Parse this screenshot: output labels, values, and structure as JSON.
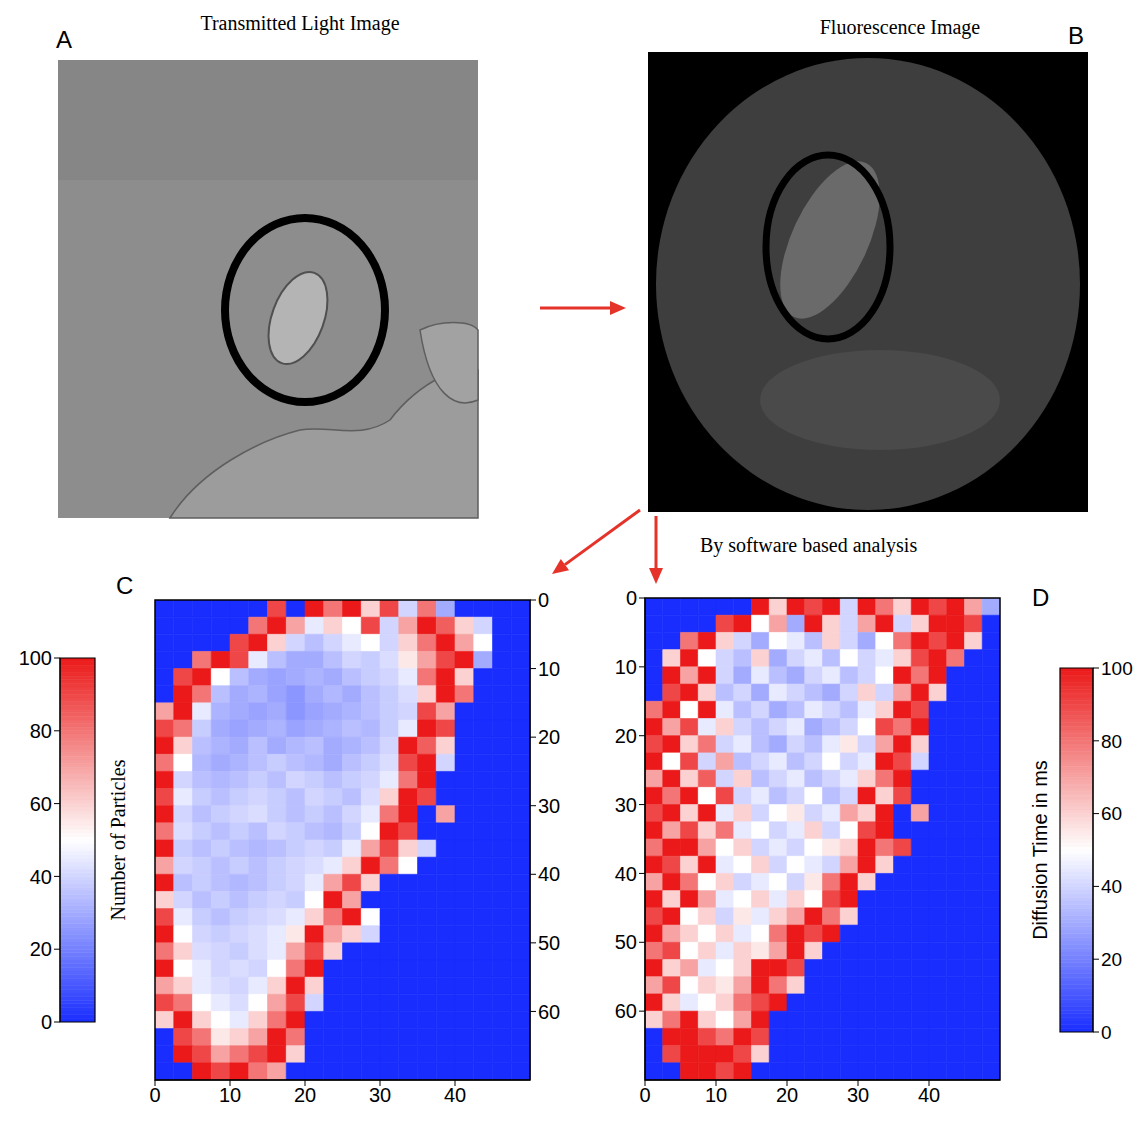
{
  "figure": {
    "panels": [
      {
        "label": "A",
        "title": "Transmitted Light Image"
      },
      {
        "label": "B",
        "title": "Fluorescence Image"
      }
    ],
    "annotation": "By software based analysis"
  },
  "chart_data": [
    {
      "type": "heatmap",
      "label": "C",
      "xlim": [
        0,
        50
      ],
      "ylim": [
        0,
        70
      ],
      "xticks": [
        0,
        10,
        20,
        30,
        40
      ],
      "yticks": [
        0,
        10,
        20,
        30,
        40,
        50,
        60
      ],
      "x_bins": [
        0,
        2.5,
        5,
        7.5,
        10,
        12.5,
        15,
        17.5,
        20,
        22.5,
        25,
        27.5,
        30,
        32.5,
        35,
        37.5,
        40,
        42.5,
        45,
        47.5,
        50
      ],
      "y_bins": [
        0,
        2.5,
        5,
        7.5,
        10,
        12.5,
        15,
        17.5,
        20,
        22.5,
        25,
        27.5,
        30,
        32.5,
        35,
        37.5,
        40,
        42.5,
        45,
        47.5,
        50,
        52.5,
        55,
        57.5,
        60,
        62.5,
        65,
        67.5,
        70
      ],
      "cells": [
        [
          0,
          0,
          0,
          0,
          0,
          0,
          90,
          0,
          100,
          80,
          100,
          60,
          90,
          40,
          80,
          30,
          0,
          0,
          0,
          0
        ],
        [
          0,
          0,
          0,
          0,
          0,
          80,
          100,
          70,
          45,
          60,
          50,
          90,
          40,
          70,
          100,
          85,
          60,
          40,
          0,
          0
        ],
        [
          0,
          0,
          0,
          0,
          90,
          100,
          60,
          40,
          35,
          40,
          45,
          50,
          40,
          60,
          80,
          100,
          70,
          50,
          0,
          0
        ],
        [
          0,
          0,
          80,
          100,
          90,
          45,
          35,
          30,
          30,
          35,
          40,
          38,
          42,
          55,
          70,
          90,
          100,
          30,
          0,
          0
        ],
        [
          0,
          90,
          100,
          50,
          35,
          30,
          28,
          30,
          32,
          30,
          35,
          38,
          40,
          45,
          80,
          100,
          60,
          0,
          0,
          0
        ],
        [
          0,
          100,
          80,
          35,
          30,
          32,
          28,
          25,
          30,
          33,
          30,
          35,
          38,
          42,
          60,
          100,
          80,
          0,
          0,
          0
        ],
        [
          70,
          100,
          45,
          32,
          30,
          28,
          30,
          25,
          28,
          30,
          32,
          35,
          38,
          40,
          90,
          70,
          0,
          0,
          0,
          0
        ],
        [
          90,
          80,
          38,
          30,
          28,
          30,
          32,
          28,
          30,
          32,
          35,
          33,
          38,
          45,
          100,
          90,
          0,
          0,
          0,
          0
        ],
        [
          100,
          60,
          35,
          32,
          30,
          35,
          30,
          33,
          35,
          30,
          32,
          35,
          40,
          100,
          85,
          60,
          0,
          0,
          0,
          0
        ],
        [
          80,
          50,
          33,
          30,
          32,
          35,
          38,
          35,
          33,
          30,
          35,
          38,
          42,
          90,
          100,
          40,
          0,
          0,
          0,
          0
        ],
        [
          100,
          40,
          35,
          33,
          35,
          38,
          35,
          40,
          38,
          35,
          38,
          40,
          45,
          80,
          100,
          0,
          0,
          0,
          0,
          0
        ],
        [
          90,
          45,
          38,
          35,
          38,
          40,
          38,
          35,
          40,
          38,
          35,
          42,
          60,
          100,
          90,
          0,
          0,
          0,
          0,
          0
        ],
        [
          100,
          40,
          35,
          38,
          40,
          42,
          38,
          35,
          38,
          35,
          40,
          45,
          80,
          100,
          0,
          70,
          0,
          0,
          0,
          0
        ],
        [
          80,
          42,
          38,
          35,
          38,
          35,
          40,
          38,
          35,
          33,
          38,
          50,
          100,
          90,
          0,
          0,
          0,
          0,
          0,
          0
        ],
        [
          100,
          38,
          35,
          38,
          35,
          33,
          35,
          38,
          40,
          38,
          45,
          70,
          90,
          60,
          40,
          0,
          0,
          0,
          0,
          0
        ],
        [
          70,
          40,
          38,
          35,
          38,
          35,
          38,
          40,
          42,
          45,
          60,
          100,
          80,
          50,
          0,
          0,
          0,
          0,
          0,
          0
        ],
        [
          100,
          35,
          38,
          35,
          33,
          35,
          38,
          40,
          45,
          70,
          90,
          60,
          0,
          0,
          0,
          0,
          0,
          0,
          0,
          0
        ],
        [
          60,
          40,
          35,
          38,
          35,
          38,
          40,
          38,
          50,
          100,
          70,
          0,
          0,
          0,
          0,
          0,
          0,
          0,
          0,
          0
        ],
        [
          90,
          45,
          38,
          35,
          38,
          40,
          42,
          45,
          60,
          80,
          100,
          50,
          0,
          0,
          0,
          0,
          0,
          0,
          0,
          0
        ],
        [
          100,
          50,
          40,
          38,
          40,
          42,
          45,
          55,
          100,
          70,
          60,
          40,
          0,
          0,
          0,
          0,
          0,
          0,
          0,
          0
        ],
        [
          80,
          60,
          42,
          40,
          38,
          42,
          45,
          70,
          90,
          60,
          0,
          0,
          0,
          0,
          0,
          0,
          0,
          0,
          0,
          0
        ],
        [
          100,
          50,
          45,
          40,
          42,
          40,
          50,
          80,
          100,
          0,
          0,
          0,
          0,
          0,
          0,
          0,
          0,
          0,
          0,
          0
        ],
        [
          70,
          60,
          45,
          42,
          40,
          45,
          60,
          100,
          60,
          0,
          0,
          0,
          0,
          0,
          0,
          0,
          0,
          0,
          0,
          0
        ],
        [
          90,
          80,
          50,
          45,
          42,
          50,
          70,
          90,
          40,
          0,
          0,
          0,
          0,
          0,
          0,
          0,
          0,
          0,
          0,
          0
        ],
        [
          60,
          100,
          60,
          50,
          45,
          60,
          80,
          100,
          0,
          0,
          0,
          0,
          0,
          0,
          0,
          0,
          0,
          0,
          0,
          0
        ],
        [
          0,
          90,
          80,
          55,
          60,
          70,
          100,
          80,
          0,
          0,
          0,
          0,
          0,
          0,
          0,
          0,
          0,
          0,
          0,
          0
        ],
        [
          0,
          100,
          90,
          70,
          80,
          90,
          100,
          60,
          0,
          0,
          0,
          0,
          0,
          0,
          0,
          0,
          0,
          0,
          0,
          0
        ],
        [
          0,
          0,
          100,
          90,
          100,
          80,
          70,
          0,
          0,
          0,
          0,
          0,
          0,
          0,
          0,
          0,
          0,
          0,
          0,
          0
        ]
      ],
      "colorbar": {
        "label": "Number of Particles",
        "range": [
          0,
          100
        ],
        "ticks": [
          0,
          20,
          40,
          60,
          80,
          100
        ]
      }
    },
    {
      "type": "heatmap",
      "label": "D",
      "xlim": [
        0,
        50
      ],
      "ylim": [
        0,
        70
      ],
      "xticks": [
        0,
        10,
        20,
        30,
        40
      ],
      "yticks": [
        0,
        10,
        20,
        30,
        40,
        50,
        60
      ],
      "x_bins": [
        0,
        2.5,
        5,
        7.5,
        10,
        12.5,
        15,
        17.5,
        20,
        22.5,
        25,
        27.5,
        30,
        32.5,
        35,
        37.5,
        40,
        42.5,
        45,
        47.5,
        50
      ],
      "y_bins": [
        0,
        2.5,
        5,
        7.5,
        10,
        12.5,
        15,
        17.5,
        20,
        22.5,
        25,
        27.5,
        30,
        32.5,
        35,
        37.5,
        40,
        42.5,
        45,
        47.5,
        50,
        52.5,
        55,
        57.5,
        60,
        62.5,
        65,
        67.5,
        70
      ],
      "cells": [
        [
          0,
          0,
          0,
          0,
          0,
          0,
          100,
          60,
          100,
          90,
          100,
          40,
          100,
          80,
          60,
          100,
          90,
          100,
          70,
          30
        ],
        [
          0,
          0,
          0,
          0,
          90,
          100,
          50,
          70,
          30,
          100,
          60,
          40,
          70,
          100,
          40,
          60,
          100,
          100,
          90,
          0
        ],
        [
          0,
          0,
          80,
          100,
          60,
          40,
          30,
          50,
          45,
          35,
          60,
          40,
          30,
          50,
          80,
          100,
          90,
          100,
          60,
          0
        ],
        [
          0,
          60,
          100,
          50,
          40,
          35,
          60,
          30,
          40,
          45,
          35,
          50,
          40,
          45,
          60,
          90,
          100,
          80,
          0,
          0
        ],
        [
          0,
          100,
          70,
          100,
          40,
          30,
          45,
          35,
          30,
          40,
          45,
          35,
          40,
          50,
          100,
          80,
          100,
          0,
          0,
          0
        ],
        [
          0,
          90,
          100,
          60,
          35,
          40,
          30,
          45,
          40,
          35,
          30,
          40,
          60,
          40,
          70,
          100,
          60,
          0,
          0,
          0
        ],
        [
          80,
          100,
          50,
          100,
          45,
          35,
          40,
          30,
          35,
          45,
          40,
          35,
          45,
          60,
          100,
          90,
          0,
          0,
          0,
          0
        ],
        [
          100,
          70,
          90,
          45,
          60,
          40,
          35,
          40,
          45,
          30,
          35,
          40,
          50,
          90,
          80,
          100,
          0,
          0,
          0,
          0
        ],
        [
          90,
          100,
          60,
          80,
          40,
          45,
          35,
          30,
          40,
          35,
          45,
          55,
          40,
          70,
          100,
          60,
          0,
          0,
          0,
          0
        ],
        [
          100,
          50,
          90,
          40,
          70,
          35,
          40,
          45,
          35,
          40,
          50,
          40,
          45,
          100,
          90,
          40,
          0,
          0,
          0,
          0
        ],
        [
          70,
          100,
          60,
          85,
          40,
          60,
          35,
          40,
          45,
          35,
          40,
          45,
          60,
          80,
          100,
          0,
          0,
          0,
          0,
          0
        ],
        [
          100,
          80,
          100,
          50,
          90,
          40,
          45,
          35,
          40,
          50,
          35,
          40,
          100,
          60,
          90,
          0,
          0,
          0,
          0,
          0
        ],
        [
          90,
          100,
          60,
          100,
          45,
          60,
          40,
          50,
          55,
          40,
          45,
          70,
          60,
          100,
          0,
          70,
          0,
          0,
          0,
          0
        ],
        [
          100,
          70,
          90,
          60,
          80,
          45,
          50,
          40,
          45,
          60,
          40,
          50,
          90,
          100,
          0,
          0,
          0,
          0,
          0,
          0
        ],
        [
          80,
          100,
          100,
          70,
          50,
          60,
          40,
          45,
          40,
          50,
          55,
          60,
          100,
          80,
          90,
          0,
          0,
          0,
          0,
          0
        ],
        [
          100,
          90,
          60,
          100,
          45,
          50,
          60,
          40,
          50,
          45,
          40,
          70,
          100,
          60,
          0,
          0,
          0,
          0,
          0,
          0
        ],
        [
          70,
          100,
          80,
          50,
          60,
          40,
          45,
          50,
          40,
          55,
          80,
          100,
          60,
          0,
          0,
          0,
          0,
          0,
          0,
          0
        ],
        [
          100,
          60,
          100,
          70,
          45,
          50,
          60,
          45,
          60,
          50,
          90,
          100,
          0,
          0,
          0,
          0,
          0,
          0,
          0,
          0
        ],
        [
          90,
          100,
          50,
          60,
          40,
          55,
          45,
          60,
          70,
          100,
          80,
          60,
          0,
          0,
          0,
          0,
          0,
          0,
          0,
          0
        ],
        [
          100,
          70,
          60,
          50,
          60,
          45,
          50,
          80,
          100,
          90,
          100,
          0,
          0,
          0,
          0,
          0,
          0,
          0,
          0,
          0
        ],
        [
          80,
          90,
          50,
          60,
          45,
          60,
          55,
          70,
          100,
          60,
          0,
          0,
          0,
          0,
          0,
          0,
          0,
          0,
          0,
          0
        ],
        [
          100,
          60,
          70,
          45,
          50,
          60,
          100,
          100,
          90,
          0,
          0,
          0,
          0,
          0,
          0,
          0,
          0,
          0,
          0,
          0
        ],
        [
          70,
          90,
          50,
          60,
          55,
          70,
          100,
          80,
          60,
          0,
          0,
          0,
          0,
          0,
          0,
          0,
          0,
          0,
          0,
          0
        ],
        [
          100,
          60,
          45,
          50,
          60,
          80,
          90,
          100,
          0,
          0,
          0,
          0,
          0,
          0,
          0,
          0,
          0,
          0,
          0,
          0
        ],
        [
          60,
          80,
          100,
          60,
          50,
          70,
          100,
          0,
          0,
          0,
          0,
          0,
          0,
          0,
          0,
          0,
          0,
          0,
          0,
          0
        ],
        [
          0,
          100,
          100,
          90,
          80,
          100,
          90,
          0,
          0,
          0,
          0,
          0,
          0,
          0,
          0,
          0,
          0,
          0,
          0,
          0
        ],
        [
          0,
          90,
          100,
          100,
          100,
          90,
          60,
          0,
          0,
          0,
          0,
          0,
          0,
          0,
          0,
          0,
          0,
          0,
          0,
          0
        ],
        [
          0,
          0,
          100,
          100,
          90,
          100,
          0,
          0,
          0,
          0,
          0,
          0,
          0,
          0,
          0,
          0,
          0,
          0,
          0,
          0
        ]
      ],
      "colorbar": {
        "label": "Diffusion Time in ms",
        "range": [
          0,
          100
        ],
        "ticks": [
          0,
          20,
          40,
          60,
          80,
          100
        ]
      }
    }
  ]
}
